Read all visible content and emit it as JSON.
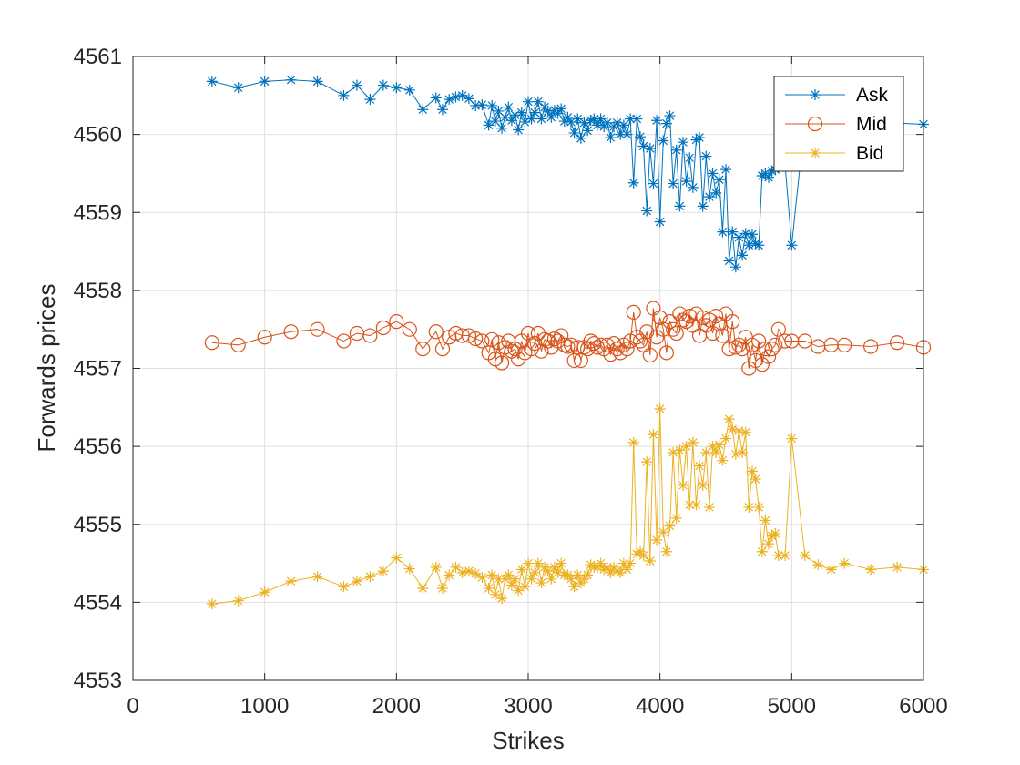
{
  "chart_data": {
    "type": "line",
    "title": "",
    "xlabel": "Strikes",
    "ylabel": "Forwards prices",
    "xlim": [
      0,
      6000
    ],
    "ylim": [
      4553,
      4561
    ],
    "xticks": [
      0,
      1000,
      2000,
      3000,
      4000,
      5000,
      6000
    ],
    "yticks": [
      4553,
      4554,
      4555,
      4556,
      4557,
      4558,
      4559,
      4560,
      4561
    ],
    "grid": true,
    "legend": "top-right",
    "series": [
      {
        "name": "Ask",
        "color": "#0072BD",
        "marker": "asterisk",
        "x": [
          600,
          800,
          1000,
          1200,
          1400,
          1600,
          1700,
          1800,
          1900,
          2000,
          2100,
          2200,
          2300,
          2350,
          2400,
          2450,
          2500,
          2550,
          2600,
          2650,
          2700,
          2725,
          2750,
          2775,
          2800,
          2825,
          2850,
          2875,
          2900,
          2925,
          2950,
          2975,
          3000,
          3025,
          3050,
          3075,
          3100,
          3125,
          3150,
          3175,
          3200,
          3225,
          3250,
          3275,
          3300,
          3325,
          3350,
          3375,
          3400,
          3425,
          3450,
          3475,
          3500,
          3525,
          3550,
          3575,
          3600,
          3625,
          3650,
          3675,
          3700,
          3725,
          3750,
          3775,
          3800,
          3825,
          3850,
          3875,
          3900,
          3925,
          3950,
          3975,
          4000,
          4025,
          4050,
          4075,
          4100,
          4125,
          4150,
          4175,
          4200,
          4225,
          4250,
          4275,
          4300,
          4325,
          4350,
          4375,
          4400,
          4425,
          4450,
          4475,
          4500,
          4525,
          4550,
          4575,
          4600,
          4625,
          4650,
          4675,
          4700,
          4725,
          4750,
          4775,
          4800,
          4825,
          4850,
          4875,
          4900,
          4950,
          5000,
          5100,
          6000
        ],
        "values": [
          4560.68,
          4560.6,
          4560.68,
          4560.7,
          4560.68,
          4560.5,
          4560.63,
          4560.45,
          4560.63,
          4560.6,
          4560.57,
          4560.32,
          4560.47,
          4560.32,
          4560.45,
          4560.48,
          4560.5,
          4560.46,
          4560.37,
          4560.38,
          4560.12,
          4560.37,
          4560.17,
          4560.3,
          4560.08,
          4560.22,
          4560.35,
          4560.18,
          4560.25,
          4560.06,
          4560.28,
          4560.16,
          4560.42,
          4560.2,
          4560.28,
          4560.42,
          4560.2,
          4560.35,
          4560.3,
          4560.22,
          4560.31,
          4560.27,
          4560.33,
          4560.17,
          4560.22,
          4560.16,
          4560.02,
          4560.2,
          4559.95,
          4560.15,
          4560.05,
          4560.18,
          4560.2,
          4560.12,
          4560.2,
          4560.1,
          4560.15,
          4559.96,
          4560.1,
          4560.15,
          4560.0,
          4560.12,
          4560.0,
          4560.2,
          4559.38,
          4560.2,
          4559.97,
          4559.85,
          4559.02,
          4559.82,
          4559.37,
          4560.18,
          4558.88,
          4559.92,
          4560.14,
          4560.24,
          4559.37,
          4559.8,
          4559.08,
          4559.9,
          4559.4,
          4559.7,
          4559.32,
          4559.93,
          4559.96,
          4559.08,
          4559.72,
          4559.2,
          4559.5,
          4559.25,
          4559.42,
          4558.75,
          4559.55,
          4558.38,
          4558.75,
          4558.3,
          4558.68,
          4558.45,
          4558.73,
          4558.58,
          4558.72,
          4558.6,
          4558.58,
          4559.47,
          4559.5,
          4559.45,
          4559.53,
          4559.55,
          4559.58,
          4559.6,
          4558.58,
          4560.2,
          4560.13
        ]
      },
      {
        "name": "Mid",
        "color": "#D95319",
        "marker": "circle",
        "x": [
          600,
          800,
          1000,
          1200,
          1400,
          1600,
          1700,
          1800,
          1900,
          2000,
          2100,
          2200,
          2300,
          2350,
          2400,
          2450,
          2500,
          2550,
          2600,
          2650,
          2700,
          2725,
          2750,
          2775,
          2800,
          2825,
          2850,
          2875,
          2900,
          2925,
          2950,
          2975,
          3000,
          3025,
          3050,
          3075,
          3100,
          3125,
          3150,
          3175,
          3200,
          3225,
          3250,
          3275,
          3300,
          3325,
          3350,
          3375,
          3400,
          3425,
          3450,
          3475,
          3500,
          3525,
          3550,
          3575,
          3600,
          3625,
          3650,
          3675,
          3700,
          3725,
          3750,
          3775,
          3800,
          3825,
          3850,
          3875,
          3900,
          3925,
          3950,
          3975,
          4000,
          4025,
          4050,
          4075,
          4100,
          4125,
          4150,
          4175,
          4200,
          4225,
          4250,
          4275,
          4300,
          4325,
          4350,
          4375,
          4400,
          4425,
          4450,
          4475,
          4500,
          4525,
          4550,
          4575,
          4600,
          4625,
          4650,
          4675,
          4700,
          4725,
          4750,
          4775,
          4800,
          4825,
          4850,
          4875,
          4900,
          4950,
          5000,
          5100,
          5200,
          5300,
          5400,
          5600,
          5800,
          6000
        ],
        "values": [
          4557.33,
          4557.3,
          4557.4,
          4557.47,
          4557.5,
          4557.35,
          4557.45,
          4557.42,
          4557.52,
          4557.6,
          4557.5,
          4557.25,
          4557.47,
          4557.25,
          4557.4,
          4557.45,
          4557.42,
          4557.42,
          4557.38,
          4557.35,
          4557.2,
          4557.37,
          4557.12,
          4557.33,
          4557.07,
          4557.27,
          4557.35,
          4557.22,
          4557.25,
          4557.12,
          4557.35,
          4557.2,
          4557.45,
          4557.25,
          4557.32,
          4557.45,
          4557.22,
          4557.37,
          4557.35,
          4557.27,
          4557.38,
          4557.35,
          4557.42,
          4557.3,
          4557.28,
          4557.3,
          4557.1,
          4557.27,
          4557.1,
          4557.27,
          4557.25,
          4557.35,
          4557.32,
          4557.27,
          4557.3,
          4557.25,
          4557.3,
          4557.18,
          4557.32,
          4557.25,
          4557.2,
          4557.3,
          4557.25,
          4557.35,
          4557.72,
          4557.4,
          4557.35,
          4557.3,
          4557.47,
          4557.17,
          4557.77,
          4557.4,
          4557.65,
          4557.5,
          4557.2,
          4557.6,
          4557.5,
          4557.45,
          4557.7,
          4557.62,
          4557.6,
          4557.67,
          4557.55,
          4557.7,
          4557.42,
          4557.65,
          4557.55,
          4557.62,
          4557.45,
          4557.67,
          4557.57,
          4557.42,
          4557.7,
          4557.25,
          4557.6,
          4557.27,
          4557.3,
          4557.25,
          4557.4,
          4557.0,
          4557.3,
          4557.1,
          4557.35,
          4557.05,
          4557.25,
          4557.15,
          4557.25,
          4557.3,
          4557.5,
          4557.35,
          4557.35,
          4557.35,
          4557.28,
          4557.3,
          4557.3,
          4557.28,
          4557.33,
          4557.27
        ]
      },
      {
        "name": "Bid",
        "color": "#EDB120",
        "marker": "asterisk",
        "x": [
          600,
          800,
          1000,
          1200,
          1400,
          1600,
          1700,
          1800,
          1900,
          2000,
          2100,
          2200,
          2300,
          2350,
          2400,
          2450,
          2500,
          2550,
          2600,
          2650,
          2700,
          2725,
          2750,
          2775,
          2800,
          2825,
          2850,
          2875,
          2900,
          2925,
          2950,
          2975,
          3000,
          3025,
          3050,
          3075,
          3100,
          3125,
          3150,
          3175,
          3200,
          3225,
          3250,
          3275,
          3300,
          3325,
          3350,
          3375,
          3400,
          3425,
          3450,
          3475,
          3500,
          3525,
          3550,
          3575,
          3600,
          3625,
          3650,
          3675,
          3700,
          3725,
          3750,
          3775,
          3800,
          3825,
          3850,
          3875,
          3900,
          3925,
          3950,
          3975,
          4000,
          4025,
          4050,
          4075,
          4100,
          4125,
          4150,
          4175,
          4200,
          4225,
          4250,
          4275,
          4300,
          4325,
          4350,
          4375,
          4400,
          4425,
          4450,
          4475,
          4500,
          4525,
          4550,
          4575,
          4600,
          4625,
          4650,
          4675,
          4700,
          4725,
          4750,
          4775,
          4800,
          4825,
          4850,
          4875,
          4900,
          4950,
          5000,
          5100,
          5200,
          5300,
          5400,
          5600,
          5800,
          6000
        ],
        "values": [
          4553.98,
          4554.02,
          4554.13,
          4554.27,
          4554.33,
          4554.2,
          4554.27,
          4554.33,
          4554.4,
          4554.57,
          4554.43,
          4554.18,
          4554.45,
          4554.18,
          4554.35,
          4554.45,
          4554.38,
          4554.4,
          4554.37,
          4554.32,
          4554.18,
          4554.35,
          4554.1,
          4554.3,
          4554.05,
          4554.3,
          4554.35,
          4554.22,
          4554.3,
          4554.15,
          4554.42,
          4554.2,
          4554.5,
          4554.3,
          4554.38,
          4554.5,
          4554.25,
          4554.45,
          4554.4,
          4554.3,
          4554.45,
          4554.38,
          4554.5,
          4554.35,
          4554.35,
          4554.3,
          4554.2,
          4554.35,
          4554.25,
          4554.3,
          4554.35,
          4554.48,
          4554.45,
          4554.45,
          4554.5,
          4554.42,
          4554.45,
          4554.38,
          4554.45,
          4554.4,
          4554.38,
          4554.5,
          4554.42,
          4554.5,
          4556.05,
          4554.62,
          4554.65,
          4554.6,
          4555.8,
          4554.53,
          4556.15,
          4554.8,
          4556.48,
          4554.9,
          4554.65,
          4554.98,
          4555.92,
          4555.08,
          4555.95,
          4555.5,
          4556.0,
          4555.25,
          4556.05,
          4555.25,
          4555.75,
          4555.5,
          4555.92,
          4555.22,
          4556.0,
          4555.92,
          4556.02,
          4555.82,
          4556.1,
          4556.35,
          4556.22,
          4555.9,
          4556.2,
          4555.92,
          4556.18,
          4555.22,
          4555.68,
          4555.58,
          4555.22,
          4554.65,
          4555.05,
          4554.75,
          4554.85,
          4554.88,
          4554.6,
          4554.6,
          4556.1,
          4554.6,
          4554.48,
          4554.42,
          4554.5,
          4554.42,
          4554.45,
          4554.42
        ]
      }
    ]
  }
}
